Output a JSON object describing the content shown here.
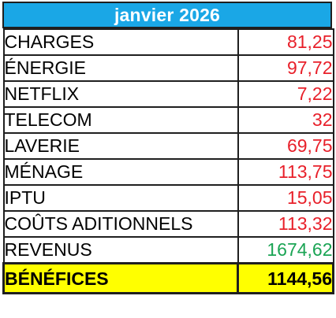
{
  "sheet": {
    "title": "janvier 2026",
    "colors": {
      "header_background": "#1aa7e6",
      "header_text": "#ffffff",
      "expense_value": "#e8202a",
      "income_value": "#1aa454",
      "total_background": "#ffff00",
      "total_text": "#000000"
    },
    "rows": [
      {
        "label": "CHARGES",
        "value": "81,25",
        "kind": "expense"
      },
      {
        "label": "ÉNERGIE",
        "value": "97,72",
        "kind": "expense"
      },
      {
        "label": "NETFLIX",
        "value": "7,22",
        "kind": "expense"
      },
      {
        "label": "TELECOM",
        "value": "32",
        "kind": "expense"
      },
      {
        "label": "LAVERIE",
        "value": "69,75",
        "kind": "expense"
      },
      {
        "label": "MÉNAGE",
        "value": "113,75",
        "kind": "expense"
      },
      {
        "label": "IPTU",
        "value": "15,05",
        "kind": "expense"
      },
      {
        "label": "COÛTS ADITIONNELS",
        "value": "113,32",
        "kind": "expense"
      },
      {
        "label": "REVENUS",
        "value": "1674,62",
        "kind": "income"
      }
    ],
    "total": {
      "label": "BÉNÉFICES",
      "value": "1144,56"
    }
  }
}
